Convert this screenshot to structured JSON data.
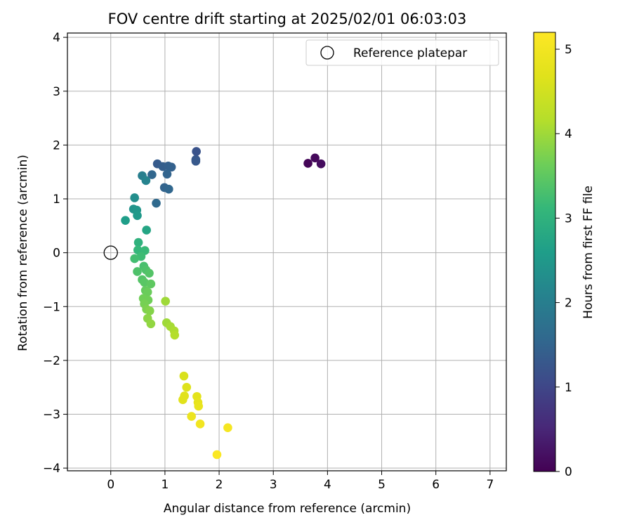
{
  "chart_data": {
    "type": "scatter",
    "title": "FOV centre drift starting at 2025/02/01 06:03:03",
    "xlabel": "Angular distance from reference (arcmin)",
    "ylabel": "Rotation from reference (arcmin)",
    "xlim": [
      -0.8,
      7.3
    ],
    "ylim": [
      -4.05,
      4.08
    ],
    "xticks": [
      0,
      1,
      2,
      3,
      4,
      5,
      6,
      7
    ],
    "yticks": [
      -4,
      -3,
      -2,
      -1,
      0,
      1,
      2,
      3,
      4
    ],
    "grid": true,
    "legend": {
      "placement": "top-right",
      "entries": [
        "Reference platepar"
      ]
    },
    "reference_point": {
      "x": 0,
      "y": 0
    },
    "colorbar": {
      "label": "Hours from first FF file",
      "min": 0,
      "max": 5.2,
      "ticks": [
        0,
        1,
        2,
        3,
        4,
        5
      ],
      "colormap": "viridis"
    },
    "points": [
      {
        "x": 3.64,
        "y": 1.66,
        "c": 0.05
      },
      {
        "x": 3.77,
        "y": 1.76,
        "c": 0.1
      },
      {
        "x": 3.88,
        "y": 1.65,
        "c": 0.15
      },
      {
        "x": 1.58,
        "y": 1.88,
        "c": 1.2
      },
      {
        "x": 1.57,
        "y": 1.73,
        "c": 1.25
      },
      {
        "x": 1.57,
        "y": 1.7,
        "c": 1.3
      },
      {
        "x": 0.86,
        "y": 1.65,
        "c": 1.35
      },
      {
        "x": 0.96,
        "y": 1.6,
        "c": 1.4
      },
      {
        "x": 1.06,
        "y": 1.61,
        "c": 1.42
      },
      {
        "x": 1.12,
        "y": 1.59,
        "c": 1.45
      },
      {
        "x": 1.04,
        "y": 1.46,
        "c": 1.5
      },
      {
        "x": 0.76,
        "y": 1.45,
        "c": 1.55
      },
      {
        "x": 0.99,
        "y": 1.21,
        "c": 1.5
      },
      {
        "x": 1.07,
        "y": 1.18,
        "c": 1.55
      },
      {
        "x": 0.84,
        "y": 0.92,
        "c": 1.6
      },
      {
        "x": 0.58,
        "y": 1.43,
        "c": 2.0
      },
      {
        "x": 0.65,
        "y": 1.34,
        "c": 2.1
      },
      {
        "x": 0.44,
        "y": 1.02,
        "c": 2.3
      },
      {
        "x": 0.42,
        "y": 0.81,
        "c": 2.4
      },
      {
        "x": 0.48,
        "y": 0.79,
        "c": 2.45
      },
      {
        "x": 0.49,
        "y": 0.69,
        "c": 2.5
      },
      {
        "x": 0.27,
        "y": 0.6,
        "c": 2.6
      },
      {
        "x": 0.66,
        "y": 0.42,
        "c": 2.75
      },
      {
        "x": 0.51,
        "y": 0.19,
        "c": 3.0
      },
      {
        "x": 0.5,
        "y": 0.05,
        "c": 3.1
      },
      {
        "x": 0.63,
        "y": 0.04,
        "c": 3.15
      },
      {
        "x": 0.56,
        "y": -0.07,
        "c": 3.2
      },
      {
        "x": 0.44,
        "y": -0.11,
        "c": 3.25
      },
      {
        "x": 0.61,
        "y": -0.25,
        "c": 3.3
      },
      {
        "x": 0.49,
        "y": -0.35,
        "c": 3.35
      },
      {
        "x": 0.65,
        "y": -0.32,
        "c": 3.35
      },
      {
        "x": 0.71,
        "y": -0.38,
        "c": 3.4
      },
      {
        "x": 0.58,
        "y": -0.5,
        "c": 3.4
      },
      {
        "x": 0.62,
        "y": -0.55,
        "c": 3.45
      },
      {
        "x": 0.74,
        "y": -0.58,
        "c": 3.5
      },
      {
        "x": 0.64,
        "y": -0.7,
        "c": 3.55
      },
      {
        "x": 0.68,
        "y": -0.73,
        "c": 3.6
      },
      {
        "x": 0.6,
        "y": -0.85,
        "c": 3.65
      },
      {
        "x": 0.69,
        "y": -0.88,
        "c": 3.65
      },
      {
        "x": 0.62,
        "y": -0.95,
        "c": 3.7
      },
      {
        "x": 0.66,
        "y": -1.05,
        "c": 3.75
      },
      {
        "x": 0.72,
        "y": -1.08,
        "c": 3.8
      },
      {
        "x": 0.68,
        "y": -1.22,
        "c": 3.85
      },
      {
        "x": 0.74,
        "y": -1.32,
        "c": 3.9
      },
      {
        "x": 1.01,
        "y": -0.9,
        "c": 4.0
      },
      {
        "x": 1.03,
        "y": -1.3,
        "c": 4.0
      },
      {
        "x": 1.1,
        "y": -1.37,
        "c": 4.05
      },
      {
        "x": 1.17,
        "y": -1.45,
        "c": 4.1
      },
      {
        "x": 1.18,
        "y": -1.53,
        "c": 4.15
      },
      {
        "x": 1.35,
        "y": -2.29,
        "c": 4.6
      },
      {
        "x": 1.4,
        "y": -2.5,
        "c": 4.65
      },
      {
        "x": 1.36,
        "y": -2.66,
        "c": 4.7
      },
      {
        "x": 1.33,
        "y": -2.73,
        "c": 4.7
      },
      {
        "x": 1.59,
        "y": -2.67,
        "c": 4.75
      },
      {
        "x": 1.61,
        "y": -2.78,
        "c": 4.8
      },
      {
        "x": 1.62,
        "y": -2.85,
        "c": 4.85
      },
      {
        "x": 1.49,
        "y": -3.04,
        "c": 4.9
      },
      {
        "x": 1.65,
        "y": -3.18,
        "c": 5.0
      },
      {
        "x": 2.16,
        "y": -3.25,
        "c": 5.05
      },
      {
        "x": 1.96,
        "y": -3.75,
        "c": 5.15
      }
    ]
  }
}
